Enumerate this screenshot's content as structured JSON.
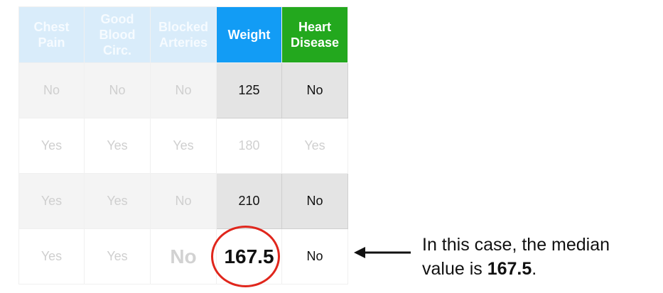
{
  "table": {
    "headers": [
      {
        "label": "Chest Pain",
        "style": "faded"
      },
      {
        "label": "Good Blood Circ.",
        "style": "faded"
      },
      {
        "label": "Blocked Arteries",
        "style": "faded"
      },
      {
        "label": "Weight",
        "style": "weight"
      },
      {
        "label": "Heart Disease",
        "style": "heart"
      }
    ],
    "rows": [
      [
        "No",
        "No",
        "No",
        "125",
        "No"
      ],
      [
        "Yes",
        "Yes",
        "Yes",
        "180",
        "Yes"
      ],
      [
        "Yes",
        "Yes",
        "No",
        "210",
        "No"
      ],
      [
        "Yes",
        "Yes",
        "No",
        "167.5",
        "No"
      ]
    ]
  },
  "colors": {
    "weight_header": "#129cf5",
    "heart_header": "#23a81e",
    "faded_header": "#d9ecfa",
    "circle": "#e0261c"
  },
  "annotation": {
    "text_before": "In this case, the median value is ",
    "value": "167.5",
    "text_after": "."
  }
}
